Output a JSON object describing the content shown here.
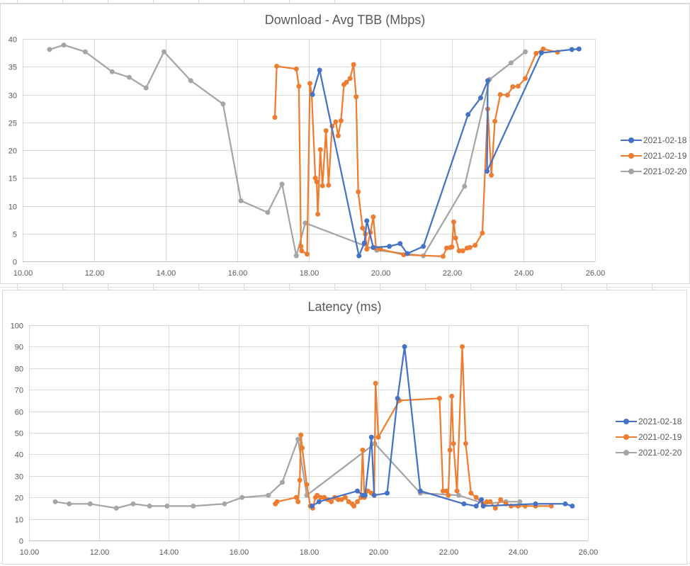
{
  "colors": {
    "series_2021_02_18": "#4472C4",
    "series_2021_02_19": "#ED7D31",
    "series_2021_02_20": "#A5A5A5",
    "gridline": "#D9D9D9",
    "axis_text": "#595959"
  },
  "download_chart": {
    "title": "Download - Avg TBB (Mbps)",
    "legend": [
      "2021-02-18",
      "2021-02-19",
      "2021-02-20"
    ],
    "x_ticks": [
      "10.00",
      "12.00",
      "14.00",
      "16.00",
      "18.00",
      "20.00",
      "22.00",
      "24.00",
      "26.00"
    ],
    "y_ticks": [
      "0",
      "5",
      "10",
      "15",
      "20",
      "25",
      "30",
      "35",
      "40"
    ]
  },
  "latency_chart": {
    "title": "Latency (ms)",
    "legend": [
      "2021-02-18",
      "2021-02-19",
      "2021-02-20"
    ],
    "x_ticks": [
      "10.00",
      "12.00",
      "14.00",
      "16.00",
      "18.00",
      "20.00",
      "22.00",
      "24.00",
      "26.00"
    ],
    "y_ticks": [
      "0",
      "10",
      "20",
      "30",
      "40",
      "50",
      "60",
      "70",
      "80",
      "90",
      "100"
    ]
  },
  "chart_data": [
    {
      "type": "line",
      "title": "Download - Avg TBB (Mbps)",
      "xlabel": "",
      "ylabel": "",
      "xlim": [
        10,
        26
      ],
      "ylim": [
        0,
        40
      ],
      "grid": true,
      "legend_position": "right",
      "series": [
        {
          "name": "2021-02-18",
          "color": "#4472C4",
          "points": [
            [
              18.1,
              30.0
            ],
            [
              18.3,
              34.4
            ],
            [
              19.4,
              1.0
            ],
            [
              19.55,
              3.3
            ],
            [
              19.62,
              7.3
            ],
            [
              19.8,
              2.5
            ],
            [
              20.25,
              2.7
            ],
            [
              20.55,
              3.2
            ],
            [
              20.75,
              1.4
            ],
            [
              21.2,
              2.7
            ],
            [
              22.45,
              26.4
            ],
            [
              22.8,
              29.4
            ],
            [
              23.0,
              32.5
            ],
            [
              22.98,
              16.2
            ],
            [
              24.5,
              37.5
            ],
            [
              25.35,
              38.1
            ],
            [
              25.55,
              38.2
            ]
          ]
        },
        {
          "name": "2021-02-19",
          "color": "#ED7D31",
          "points": [
            [
              17.05,
              25.9
            ],
            [
              17.1,
              35.1
            ],
            [
              17.65,
              34.6
            ],
            [
              17.72,
              31.5
            ],
            [
              17.78,
              2.7
            ],
            [
              17.8,
              1.9
            ],
            [
              17.95,
              1.3
            ],
            [
              18.03,
              32.0
            ],
            [
              18.08,
              30.1
            ],
            [
              18.18,
              15.0
            ],
            [
              18.22,
              14.3
            ],
            [
              18.25,
              8.5
            ],
            [
              18.32,
              20.1
            ],
            [
              18.38,
              13.6
            ],
            [
              18.48,
              23.5
            ],
            [
              18.55,
              13.7
            ],
            [
              18.65,
              24.3
            ],
            [
              18.75,
              25.1
            ],
            [
              18.82,
              22.6
            ],
            [
              18.9,
              25.3
            ],
            [
              18.98,
              31.8
            ],
            [
              19.05,
              32.2
            ],
            [
              19.15,
              32.9
            ],
            [
              19.25,
              35.4
            ],
            [
              19.32,
              29.6
            ],
            [
              19.38,
              12.5
            ],
            [
              19.5,
              6.0
            ],
            [
              19.58,
              4.9
            ],
            [
              19.62,
              2.2
            ],
            [
              19.72,
              5.2
            ],
            [
              19.8,
              8.0
            ],
            [
              19.88,
              2.4
            ],
            [
              20.0,
              2.2
            ],
            [
              20.65,
              1.2
            ],
            [
              21.75,
              0.9
            ],
            [
              21.85,
              2.4
            ],
            [
              21.95,
              2.5
            ],
            [
              22.0,
              2.6
            ],
            [
              22.05,
              7.1
            ],
            [
              22.1,
              4.2
            ],
            [
              22.2,
              1.9
            ],
            [
              22.3,
              1.9
            ],
            [
              22.42,
              2.4
            ],
            [
              22.5,
              2.5
            ],
            [
              22.65,
              2.9
            ],
            [
              22.85,
              5.1
            ],
            [
              23.0,
              27.4
            ],
            [
              23.1,
              15.5
            ],
            [
              23.2,
              25.2
            ],
            [
              23.35,
              30.0
            ],
            [
              23.55,
              29.9
            ],
            [
              23.7,
              31.4
            ],
            [
              23.85,
              31.5
            ],
            [
              24.05,
              32.9
            ],
            [
              24.35,
              37.4
            ],
            [
              24.55,
              38.2
            ],
            [
              24.95,
              37.6
            ]
          ]
        },
        {
          "name": "2021-02-20",
          "color": "#A5A5A5",
          "points": [
            [
              10.75,
              38.1
            ],
            [
              11.15,
              38.9
            ],
            [
              11.75,
              37.7
            ],
            [
              12.5,
              34.1
            ],
            [
              12.98,
              33.1
            ],
            [
              13.45,
              31.2
            ],
            [
              13.95,
              37.7
            ],
            [
              14.7,
              32.5
            ],
            [
              15.6,
              28.3
            ],
            [
              16.1,
              10.9
            ],
            [
              16.85,
              8.8
            ],
            [
              17.25,
              13.9
            ],
            [
              17.65,
              1.0
            ],
            [
              17.9,
              6.9
            ],
            [
              19.9,
              2.0
            ],
            [
              21.2,
              1.0
            ],
            [
              22.35,
              13.5
            ],
            [
              23.05,
              32.7
            ],
            [
              23.65,
              35.7
            ],
            [
              24.05,
              37.7
            ]
          ]
        }
      ]
    },
    {
      "type": "line",
      "title": "Latency (ms)",
      "xlabel": "",
      "ylabel": "",
      "xlim": [
        10,
        26
      ],
      "ylim": [
        0,
        100
      ],
      "grid": true,
      "legend_position": "right",
      "series": [
        {
          "name": "2021-02-18",
          "color": "#4472C4",
          "points": [
            [
              18.1,
              16
            ],
            [
              18.3,
              18
            ],
            [
              19.4,
              23
            ],
            [
              19.55,
              21
            ],
            [
              19.62,
              21
            ],
            [
              19.8,
              48
            ],
            [
              19.88,
              21
            ],
            [
              20.25,
              22
            ],
            [
              20.55,
              66
            ],
            [
              20.75,
              90
            ],
            [
              21.2,
              23
            ],
            [
              22.45,
              17
            ],
            [
              22.8,
              16
            ],
            [
              22.95,
              19
            ],
            [
              23.0,
              16
            ],
            [
              24.5,
              17
            ],
            [
              25.35,
              17
            ],
            [
              25.55,
              16
            ]
          ]
        },
        {
          "name": "2021-02-19",
          "color": "#ED7D31",
          "points": [
            [
              17.05,
              17
            ],
            [
              17.1,
              18
            ],
            [
              17.65,
              20
            ],
            [
              17.7,
              18
            ],
            [
              17.75,
              28
            ],
            [
              17.78,
              49
            ],
            [
              17.82,
              43
            ],
            [
              17.95,
              26
            ],
            [
              18.05,
              16
            ],
            [
              18.12,
              15
            ],
            [
              18.2,
              20
            ],
            [
              18.25,
              21
            ],
            [
              18.35,
              20
            ],
            [
              18.45,
              20
            ],
            [
              18.55,
              19
            ],
            [
              18.65,
              18
            ],
            [
              18.75,
              20
            ],
            [
              18.85,
              19
            ],
            [
              18.95,
              19
            ],
            [
              19.05,
              20
            ],
            [
              19.15,
              18
            ],
            [
              19.25,
              17
            ],
            [
              19.3,
              16
            ],
            [
              19.4,
              18
            ],
            [
              19.5,
              20
            ],
            [
              19.55,
              42
            ],
            [
              19.6,
              20
            ],
            [
              19.7,
              23
            ],
            [
              19.8,
              22
            ],
            [
              19.88,
              21
            ],
            [
              19.92,
              73
            ],
            [
              20.0,
              48
            ],
            [
              20.6,
              65
            ],
            [
              21.75,
              66
            ],
            [
              21.85,
              23
            ],
            [
              21.95,
              23
            ],
            [
              22.0,
              21
            ],
            [
              22.05,
              42
            ],
            [
              22.1,
              67
            ],
            [
              22.15,
              45
            ],
            [
              22.25,
              23
            ],
            [
              22.4,
              90
            ],
            [
              22.5,
              45
            ],
            [
              22.65,
              22
            ],
            [
              22.8,
              20
            ],
            [
              23.0,
              17
            ],
            [
              23.1,
              18
            ],
            [
              23.2,
              18
            ],
            [
              23.35,
              15
            ],
            [
              23.5,
              19
            ],
            [
              23.65,
              17
            ],
            [
              23.8,
              16
            ],
            [
              24.0,
              16
            ],
            [
              24.2,
              16
            ],
            [
              24.5,
              16
            ],
            [
              24.95,
              16
            ]
          ]
        },
        {
          "name": "2021-02-20",
          "color": "#A5A5A5",
          "points": [
            [
              10.75,
              18
            ],
            [
              11.15,
              17
            ],
            [
              11.75,
              17
            ],
            [
              12.5,
              15
            ],
            [
              12.98,
              17
            ],
            [
              13.45,
              16
            ],
            [
              13.95,
              16
            ],
            [
              14.7,
              16
            ],
            [
              15.6,
              17
            ],
            [
              16.1,
              20
            ],
            [
              16.85,
              21
            ],
            [
              17.25,
              27
            ],
            [
              17.7,
              47
            ],
            [
              17.95,
              21
            ],
            [
              19.9,
              45
            ],
            [
              21.2,
              22
            ],
            [
              22.3,
              21
            ],
            [
              23.05,
              17
            ],
            [
              23.65,
              18
            ],
            [
              24.05,
              18
            ]
          ]
        }
      ]
    }
  ]
}
